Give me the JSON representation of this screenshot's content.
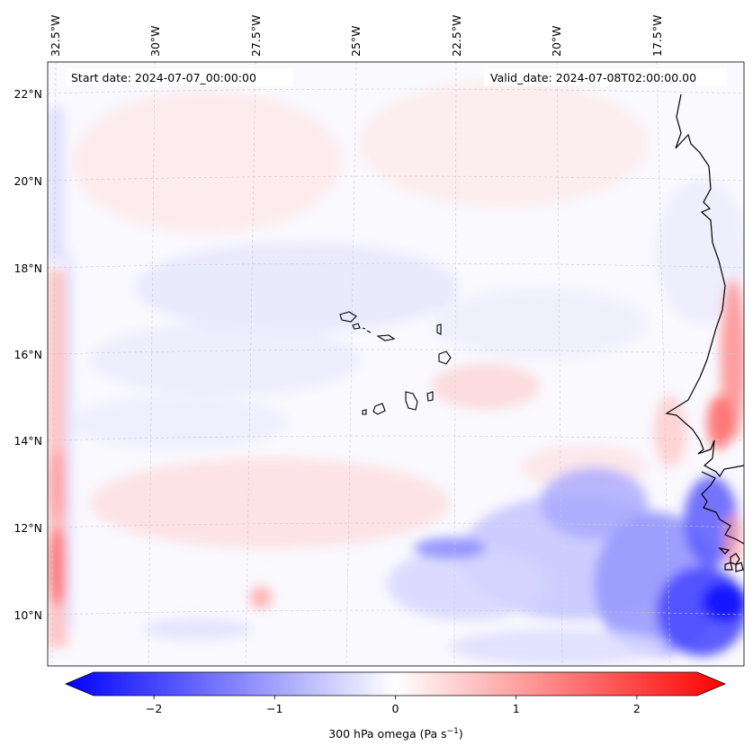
{
  "header": {
    "start_date": "Start date: 2024-07-07_00:00:00",
    "valid_date": "Valid_date: 2024-07-08T02:00:00.00"
  },
  "map": {
    "variable": "300 hPa omega",
    "lon_labels": [
      "32.5°W",
      "30°W",
      "27.5°W",
      "25°W",
      "22.5°W",
      "20°W",
      "17.5°W"
    ],
    "lat_labels": [
      "22°N",
      "20°N",
      "18°N",
      "16°N",
      "14°N",
      "12°N",
      "10°N"
    ],
    "features": [
      "Cape Verde islands",
      "West African coastline"
    ]
  },
  "colorbar": {
    "label": "300 hPa omega (Pa s",
    "label_sup": "−1",
    "label_end": ")",
    "ticks": [
      "−2",
      "−1",
      "0",
      "1",
      "2"
    ],
    "tick_values": [
      -2,
      -1,
      0,
      1,
      2
    ],
    "range": [
      -2.5,
      2.5
    ],
    "cmap": "bwr",
    "colors": {
      "low": "#0000ff",
      "mid": "#ffffff",
      "high": "#ff0000"
    }
  }
}
